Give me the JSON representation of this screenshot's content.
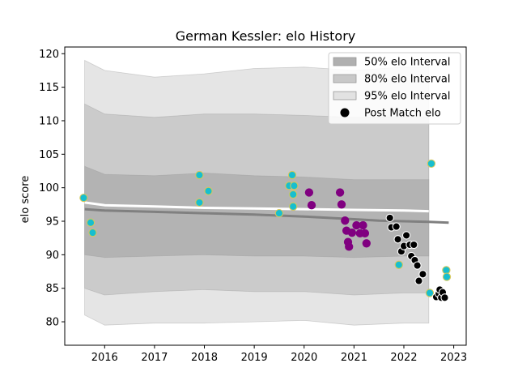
{
  "chart_data": {
    "type": "scatter",
    "title": "German Kessler: elo History",
    "xlabel": "",
    "ylabel": "elo score",
    "xlim": [
      2015.2,
      2023.25
    ],
    "ylim": [
      76.5,
      121.0
    ],
    "x_ticks": [
      2016,
      2017,
      2018,
      2019,
      2020,
      2021,
      2022,
      2023
    ],
    "x_tick_labels": [
      "2016",
      "2017",
      "2018",
      "2019",
      "2020",
      "2021",
      "2022",
      "2023"
    ],
    "y_ticks": [
      80,
      85,
      90,
      95,
      100,
      105,
      110,
      115,
      120
    ],
    "y_tick_labels": [
      "80",
      "85",
      "90",
      "95",
      "100",
      "105",
      "110",
      "115",
      "120"
    ],
    "grid": false,
    "legend_position": "top-right",
    "legend": [
      {
        "label": "50% elo Interval",
        "kind": "patch",
        "color": "#b0b0b0"
      },
      {
        "label": "80% elo Interval",
        "kind": "patch",
        "color": "#c8c8c8"
      },
      {
        "label": "95% elo Interval",
        "kind": "patch",
        "color": "#e2e2e2"
      },
      {
        "label": "Post Match elo",
        "kind": "marker",
        "color": "#000000"
      }
    ],
    "bands": [
      {
        "name": "95% elo Interval",
        "color": "#e2e2e2",
        "x": [
          2015.6,
          2016.0,
          2017.0,
          2018.0,
          2019.0,
          2020.0,
          2021.0,
          2022.0,
          2022.5
        ],
        "upper": [
          119.0,
          117.5,
          116.5,
          117.0,
          117.8,
          118.0,
          117.5,
          118.0,
          118.0
        ],
        "lower": [
          81.0,
          79.5,
          79.8,
          79.8,
          80.0,
          80.2,
          79.5,
          79.8,
          79.8
        ]
      },
      {
        "name": "80% elo Interval",
        "color": "#c8c8c8",
        "x": [
          2015.6,
          2016.0,
          2017.0,
          2018.0,
          2019.0,
          2020.0,
          2021.0,
          2022.0,
          2022.5
        ],
        "upper": [
          112.5,
          111.0,
          110.5,
          111.0,
          111.0,
          110.8,
          110.5,
          110.6,
          110.6
        ],
        "lower": [
          85.0,
          84.0,
          84.5,
          84.8,
          84.5,
          84.5,
          84.0,
          84.3,
          84.3
        ]
      },
      {
        "name": "50% elo Interval",
        "color": "#b0b0b0",
        "x": [
          2015.6,
          2016.0,
          2017.0,
          2018.0,
          2019.0,
          2020.0,
          2021.0,
          2022.0,
          2022.5
        ],
        "upper": [
          103.2,
          102.0,
          101.8,
          102.2,
          101.8,
          101.6,
          101.2,
          101.2,
          101.2
        ],
        "lower": [
          90.0,
          89.6,
          89.8,
          90.0,
          89.8,
          89.8,
          89.6,
          89.8,
          89.8
        ]
      }
    ],
    "mean_line": {
      "color": "#808080",
      "x": [
        2015.6,
        2016.0,
        2017.0,
        2018.0,
        2019.0,
        2020.0,
        2021.0,
        2021.5,
        2022.0,
        2022.5,
        2022.9
      ],
      "y": [
        96.8,
        96.6,
        96.4,
        96.2,
        96.0,
        95.7,
        95.3,
        95.1,
        95.0,
        94.9,
        94.8
      ]
    },
    "white_line": {
      "color": "#ffffff",
      "x": [
        2015.6,
        2016.0,
        2017.0,
        2018.0,
        2019.0,
        2020.0,
        2021.0,
        2022.0,
        2022.5
      ],
      "y": [
        97.8,
        97.4,
        97.2,
        97.0,
        96.9,
        96.8,
        96.7,
        96.6,
        96.5
      ]
    },
    "series": [
      {
        "name": "Post Match elo",
        "fill": "#17becf",
        "edge": "#d4c75a",
        "points": [
          [
            2015.58,
            98.5
          ],
          [
            2015.72,
            94.8
          ],
          [
            2015.76,
            93.3
          ],
          [
            2017.9,
            101.9
          ],
          [
            2017.9,
            97.8
          ],
          [
            2018.08,
            99.5
          ],
          [
            2019.5,
            96.2
          ],
          [
            2019.7,
            100.3
          ],
          [
            2019.76,
            101.9
          ],
          [
            2019.78,
            99.0
          ],
          [
            2019.8,
            100.3
          ],
          [
            2019.78,
            97.2
          ],
          [
            2021.9,
            88.5
          ],
          [
            2022.52,
            84.3
          ],
          [
            2022.55,
            103.6
          ],
          [
            2022.85,
            87.7
          ],
          [
            2022.86,
            86.7
          ]
        ]
      },
      {
        "name": "",
        "fill": "#800080",
        "edge": "#800080",
        "points": [
          [
            2020.1,
            99.3
          ],
          [
            2020.15,
            97.4
          ],
          [
            2020.72,
            99.3
          ],
          [
            2020.75,
            97.5
          ],
          [
            2020.82,
            95.1
          ],
          [
            2020.85,
            93.6
          ],
          [
            2020.88,
            91.9
          ],
          [
            2020.9,
            91.2
          ],
          [
            2020.96,
            93.3
          ],
          [
            2021.05,
            94.4
          ],
          [
            2021.12,
            93.2
          ],
          [
            2021.18,
            94.4
          ],
          [
            2021.22,
            93.2
          ],
          [
            2021.25,
            91.7
          ]
        ]
      },
      {
        "name": "",
        "fill": "#000000",
        "edge": "#ffffff",
        "points": [
          [
            2021.72,
            95.5
          ],
          [
            2021.75,
            94.1
          ],
          [
            2021.85,
            94.2
          ],
          [
            2021.88,
            92.3
          ],
          [
            2021.95,
            90.5
          ],
          [
            2022.0,
            91.3
          ],
          [
            2022.05,
            92.9
          ],
          [
            2022.12,
            91.5
          ],
          [
            2022.15,
            89.8
          ],
          [
            2022.2,
            91.5
          ],
          [
            2022.22,
            89.2
          ],
          [
            2022.27,
            88.4
          ],
          [
            2022.3,
            86.1
          ],
          [
            2022.38,
            87.1
          ],
          [
            2022.65,
            83.7
          ],
          [
            2022.7,
            84.2
          ],
          [
            2022.72,
            84.8
          ],
          [
            2022.75,
            83.6
          ],
          [
            2022.78,
            84.4
          ],
          [
            2022.82,
            83.6
          ]
        ]
      }
    ]
  }
}
